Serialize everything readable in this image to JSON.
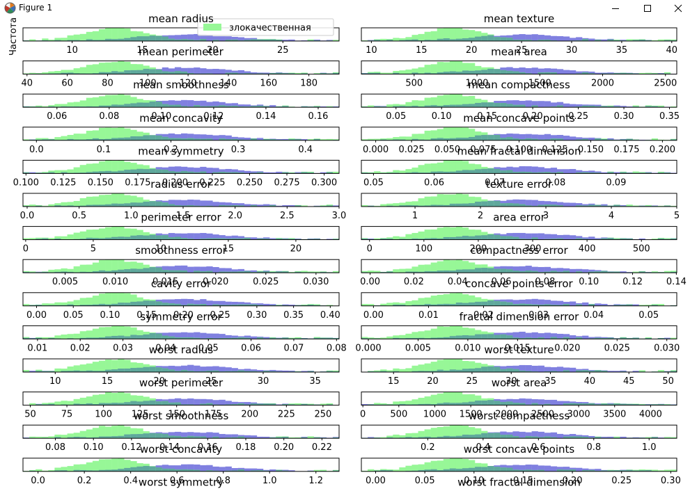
{
  "window": {
    "title": "Figure 1",
    "icon": "matplotlib-icon",
    "controls": [
      "minimize-icon",
      "maximize-icon",
      "close-icon"
    ]
  },
  "colors": {
    "benign": "#97f797",
    "malignant": "#8080e0",
    "overlap": "#5fa89c",
    "axes": "#000000"
  },
  "chart_data": {
    "type": "histogram",
    "ylabel": "Частота",
    "legend": {
      "location": "top",
      "entries": [
        "злокачественная"
      ]
    },
    "panels": [
      {
        "title": "mean radius",
        "xlim": [
          6.5,
          29
        ],
        "ticks": [
          10,
          15,
          20,
          25
        ]
      },
      {
        "title": "mean texture",
        "xlim": [
          9,
          40.5
        ],
        "ticks": [
          10,
          15,
          20,
          25,
          30,
          35,
          40
        ]
      },
      {
        "title": "mean perimeter",
        "xlim": [
          38,
          195
        ],
        "ticks": [
          40,
          60,
          80,
          100,
          120,
          140,
          160,
          180
        ]
      },
      {
        "title": "mean area",
        "xlim": [
          80,
          2590
        ],
        "ticks": [
          500,
          1000,
          1500,
          2000,
          2500
        ]
      },
      {
        "title": "mean smoothness",
        "xlim": [
          0.047,
          0.168
        ],
        "ticks": [
          0.06,
          0.08,
          0.1,
          0.12,
          0.14,
          0.16
        ],
        "tick_labels": [
          "0.06",
          "0.08",
          "0.10",
          "0.12",
          "0.14",
          "0.16"
        ]
      },
      {
        "title": "mean compactness",
        "xlim": [
          0.012,
          0.358
        ],
        "ticks": [
          0.05,
          0.1,
          0.15,
          0.2,
          0.25,
          0.3,
          0.35
        ],
        "tick_labels": [
          "0.05",
          "0.10",
          "0.15",
          "0.20",
          "0.25",
          "0.30",
          "0.35"
        ]
      },
      {
        "title": "mean concavity",
        "xlim": [
          -0.02,
          0.45
        ],
        "ticks": [
          0.0,
          0.1,
          0.2,
          0.3,
          0.4
        ],
        "tick_labels": [
          "0.0",
          "0.1",
          "0.2",
          "0.3",
          "0.4"
        ]
      },
      {
        "title": "mean concave points",
        "xlim": [
          -0.01,
          0.21
        ],
        "ticks": [
          0.0,
          0.025,
          0.05,
          0.075,
          0.1,
          0.125,
          0.15,
          0.175,
          0.2
        ],
        "tick_labels": [
          "0.000",
          "0.025",
          "0.050",
          "0.075",
          "0.100",
          "0.125",
          "0.150",
          "0.175",
          "0.200"
        ]
      },
      {
        "title": "mean symmetry",
        "xlim": [
          0.098,
          0.31
        ],
        "ticks": [
          0.1,
          0.125,
          0.15,
          0.175,
          0.2,
          0.225,
          0.25,
          0.275,
          0.3
        ],
        "tick_labels": [
          "0.100",
          "0.125",
          "0.150",
          "0.175",
          "0.200",
          "0.225",
          "0.250",
          "0.275",
          "0.300"
        ]
      },
      {
        "title": "mean fractal dimension",
        "xlim": [
          0.048,
          0.1
        ],
        "ticks": [
          0.05,
          0.06,
          0.07,
          0.08,
          0.09
        ],
        "tick_labels": [
          "0.05",
          "0.06",
          "0.07",
          "0.08",
          "0.09"
        ]
      },
      {
        "title": "radius error",
        "xlim": [
          -0.04,
          3.0
        ],
        "ticks": [
          0.0,
          0.5,
          1.0,
          1.5,
          2.0,
          2.5,
          3.0
        ],
        "tick_labels": [
          "0.0",
          "0.5",
          "1.0",
          "1.5",
          "2.0",
          "2.5",
          "3.0"
        ]
      },
      {
        "title": "texture error",
        "xlim": [
          0.18,
          5.0
        ],
        "ticks": [
          1,
          2,
          3,
          4,
          5
        ]
      },
      {
        "title": "perimeter error",
        "xlim": [
          -0.2,
          23.2
        ],
        "ticks": [
          0,
          5,
          10,
          15,
          20
        ]
      },
      {
        "title": "area error",
        "xlim": [
          -15,
          565
        ],
        "ticks": [
          0,
          100,
          200,
          300,
          400,
          500
        ]
      },
      {
        "title": "smoothness error",
        "xlim": [
          0.0008,
          0.0323
        ],
        "ticks": [
          0.005,
          0.01,
          0.015,
          0.02,
          0.025,
          0.03
        ],
        "tick_labels": [
          "0.005",
          "0.010",
          "0.015",
          "0.020",
          "0.025",
          "0.030"
        ]
      },
      {
        "title": "compactness error",
        "xlim": [
          -0.004,
          0.1402
        ],
        "ticks": [
          0.0,
          0.02,
          0.04,
          0.06,
          0.08,
          0.1,
          0.12,
          0.14
        ],
        "tick_labels": [
          "0.00",
          "0.02",
          "0.04",
          "0.06",
          "0.08",
          "0.10",
          "0.12",
          "0.14"
        ]
      },
      {
        "title": "cavity error",
        "xlim": [
          -0.0185,
          0.412
        ],
        "ticks": [
          0.0,
          0.05,
          0.1,
          0.15,
          0.2,
          0.25,
          0.3,
          0.35,
          0.4
        ],
        "tick_labels": [
          "0.00",
          "0.05",
          "0.10",
          "0.15",
          "0.20",
          "0.25",
          "0.30",
          "0.35",
          "0.40"
        ]
      },
      {
        "title": "concave points error",
        "xlim": [
          -0.0022,
          0.0551
        ],
        "ticks": [
          0.0,
          0.01,
          0.02,
          0.03,
          0.04,
          0.05
        ],
        "tick_labels": [
          "0.00",
          "0.01",
          "0.02",
          "0.03",
          "0.04",
          "0.05"
        ]
      },
      {
        "title": "symmetry error",
        "xlim": [
          0.0066,
          0.0806
        ],
        "ticks": [
          0.01,
          0.02,
          0.03,
          0.04,
          0.05,
          0.06,
          0.07,
          0.08
        ],
        "tick_labels": [
          "0.01",
          "0.02",
          "0.03",
          "0.04",
          "0.05",
          "0.06",
          "0.07",
          "0.08"
        ]
      },
      {
        "title": "fractal dimension error",
        "xlim": [
          -0.0007,
          0.031
        ],
        "ticks": [
          0.0,
          0.005,
          0.01,
          0.015,
          0.02,
          0.025,
          0.03
        ],
        "tick_labels": [
          "0.000",
          "0.005",
          "0.010",
          "0.015",
          "0.020",
          "0.025",
          "0.030"
        ]
      },
      {
        "title": "worst radius",
        "xlim": [
          6.9,
          37.3
        ],
        "ticks": [
          10,
          15,
          20,
          25,
          30,
          35
        ]
      },
      {
        "title": "worst texture",
        "xlim": [
          10.9,
          51.1
        ],
        "ticks": [
          15,
          20,
          25,
          30,
          35,
          40,
          45,
          50
        ]
      },
      {
        "title": "worst perimeter",
        "xlim": [
          45,
          261
        ],
        "ticks": [
          50,
          75,
          100,
          125,
          150,
          175,
          200,
          225,
          250
        ]
      },
      {
        "title": "worst area",
        "xlim": [
          -21,
          4364
        ],
        "ticks": [
          0,
          500,
          1000,
          1500,
          2000,
          2500,
          3000,
          3500,
          4000
        ]
      },
      {
        "title": "worst smoothness",
        "xlim": [
          0.063,
          0.229
        ],
        "ticks": [
          0.08,
          0.1,
          0.12,
          0.14,
          0.16,
          0.18,
          0.2,
          0.22
        ],
        "tick_labels": [
          "0.08",
          "0.10",
          "0.12",
          "0.14",
          "0.16",
          "0.18",
          "0.20",
          "0.22"
        ]
      },
      {
        "title": "worst compactness",
        "xlim": [
          -0.04,
          1.1
        ],
        "ticks": [
          0.2,
          0.4,
          0.6,
          0.8,
          1.0
        ],
        "tick_labels": [
          "0.2",
          "0.4",
          "0.6",
          "0.8",
          "1.0"
        ]
      },
      {
        "title": "worst concavity",
        "xlim": [
          -0.065,
          1.3
        ],
        "ticks": [
          0.0,
          0.2,
          0.4,
          0.6,
          0.8,
          1.0,
          1.2
        ],
        "tick_labels": [
          "0.0",
          "0.2",
          "0.4",
          "0.6",
          "0.8",
          "1.0",
          "1.2"
        ]
      },
      {
        "title": "worst concave points",
        "xlim": [
          -0.0145,
          0.3061
        ],
        "ticks": [
          0.0,
          0.05,
          0.1,
          0.15,
          0.2,
          0.25,
          0.3
        ],
        "tick_labels": [
          "0.00",
          "0.05",
          "0.10",
          "0.15",
          "0.20",
          "0.25",
          "0.30"
        ]
      },
      {
        "title": "worst symmetry"
      },
      {
        "title": "worst fractal dimension"
      }
    ]
  }
}
